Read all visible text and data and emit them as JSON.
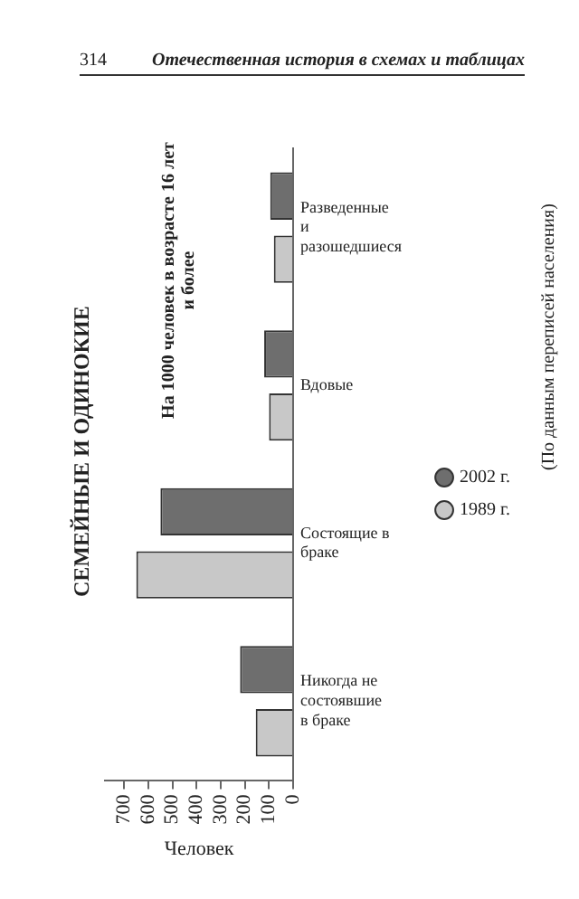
{
  "chart_data": {
    "type": "bar",
    "orientation": "horizontal",
    "title": "СЕМЕЙНЫЕ И ОДИНОКИЕ",
    "subtitle": "На 1000 человек в возрасте 16 лет и более",
    "xlabel": "Человек",
    "categories": [
      "Разведенные и разошедшиеся",
      "Вдовые",
      "Состоящие в браке",
      "Никогда не состоявшие в браке"
    ],
    "series": [
      {
        "name": "2002 г.",
        "color": "#6e6e6e",
        "values": [
          95,
          120,
          550,
          220
        ]
      },
      {
        "name": "1989 г.",
        "color": "#c8c8c8",
        "values": [
          80,
          100,
          650,
          155
        ]
      }
    ],
    "xlim": [
      780,
      0
    ],
    "xticks": [
      0,
      100,
      200,
      300,
      400,
      500,
      600,
      700
    ],
    "grid": false,
    "legend": "right",
    "annotations": [
      "314",
      "Отечественная история в схемах и таблицах",
      "(По данным переписей населения)"
    ]
  }
}
